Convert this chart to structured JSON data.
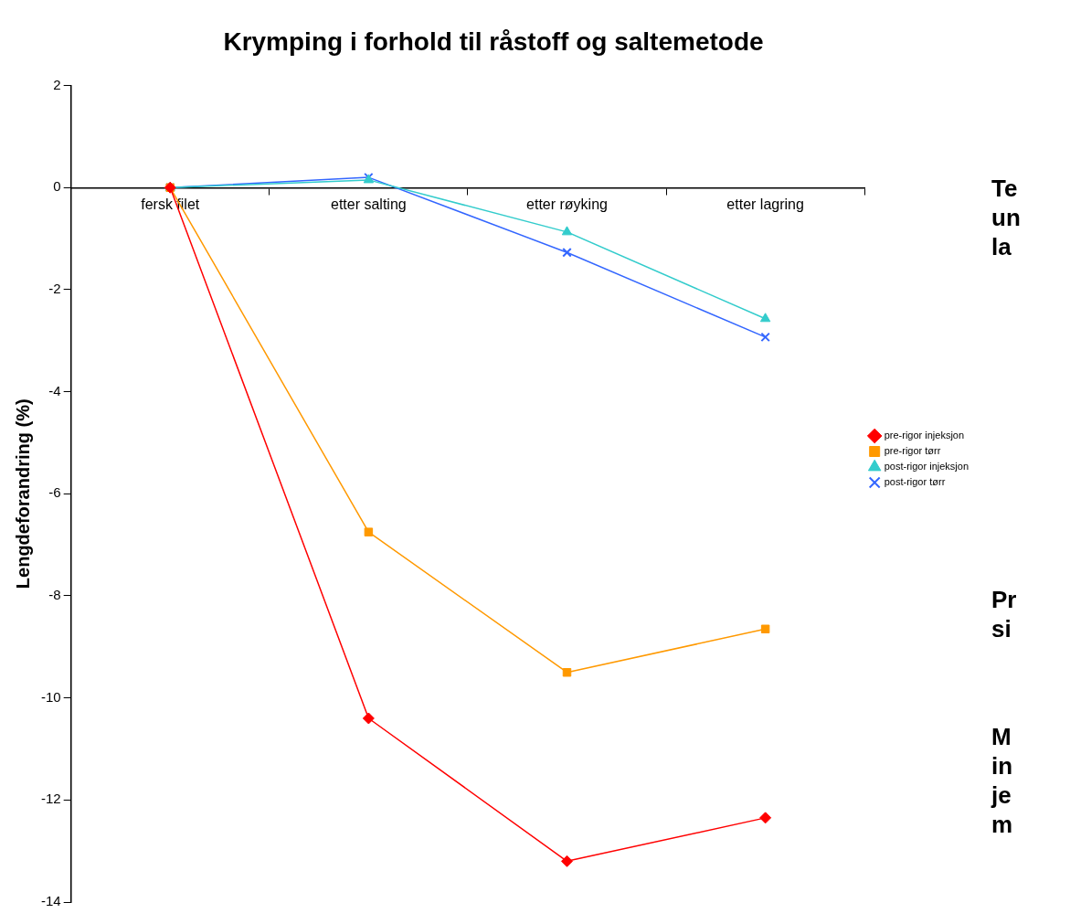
{
  "chart_data": {
    "type": "line",
    "title": "Krymping i forhold til råstoff og saltemetode",
    "ylabel": "Lengdeforandring (%)",
    "categories": [
      "fersk filet",
      "etter salting",
      "etter røyking",
      "etter lagring"
    ],
    "series": [
      {
        "name": "pre-rigor injeksjon",
        "color": "#ff0000",
        "marker": "diamond",
        "values": [
          0,
          -10.4,
          -13.2,
          -12.35
        ]
      },
      {
        "name": "pre-rigor tørr",
        "color": "#ff9900",
        "marker": "square",
        "values": [
          0,
          -6.75,
          -9.5,
          -8.65
        ]
      },
      {
        "name": "post-rigor injeksjon",
        "color": "#33cccc",
        "marker": "triangle",
        "values": [
          0,
          0.15,
          -0.87,
          -2.57
        ]
      },
      {
        "name": "post-rigor tørr",
        "color": "#3366ff",
        "marker": "cross",
        "values": [
          0,
          0.2,
          -1.27,
          -2.93
        ]
      }
    ],
    "ylim": [
      -14,
      2
    ],
    "yticks": [
      2,
      0,
      -2,
      -4,
      -6,
      -8,
      -10,
      -12,
      -14
    ],
    "grid": false,
    "legend": "right",
    "line_style": "solid",
    "annotations": [
      "Te un la",
      "Pr si",
      "M in je m"
    ]
  }
}
